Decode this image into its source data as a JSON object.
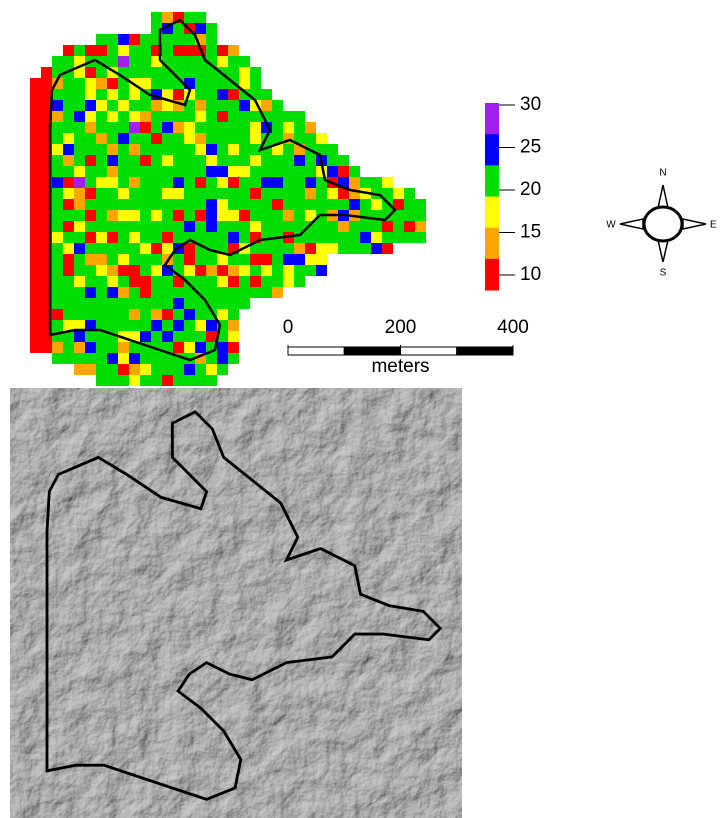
{
  "legend": {
    "ticks": [
      30,
      25,
      20,
      15,
      10
    ],
    "colors": [
      "#a020f0",
      "#0000ff",
      "#00dd00",
      "#ffff00",
      "#ffa500",
      "#ff0000"
    ]
  },
  "scale_bar": {
    "ticks": [
      0,
      200,
      400
    ],
    "unit": "meters"
  },
  "compass": {
    "north": "N",
    "south": "S",
    "west": "W",
    "east": "E"
  }
}
